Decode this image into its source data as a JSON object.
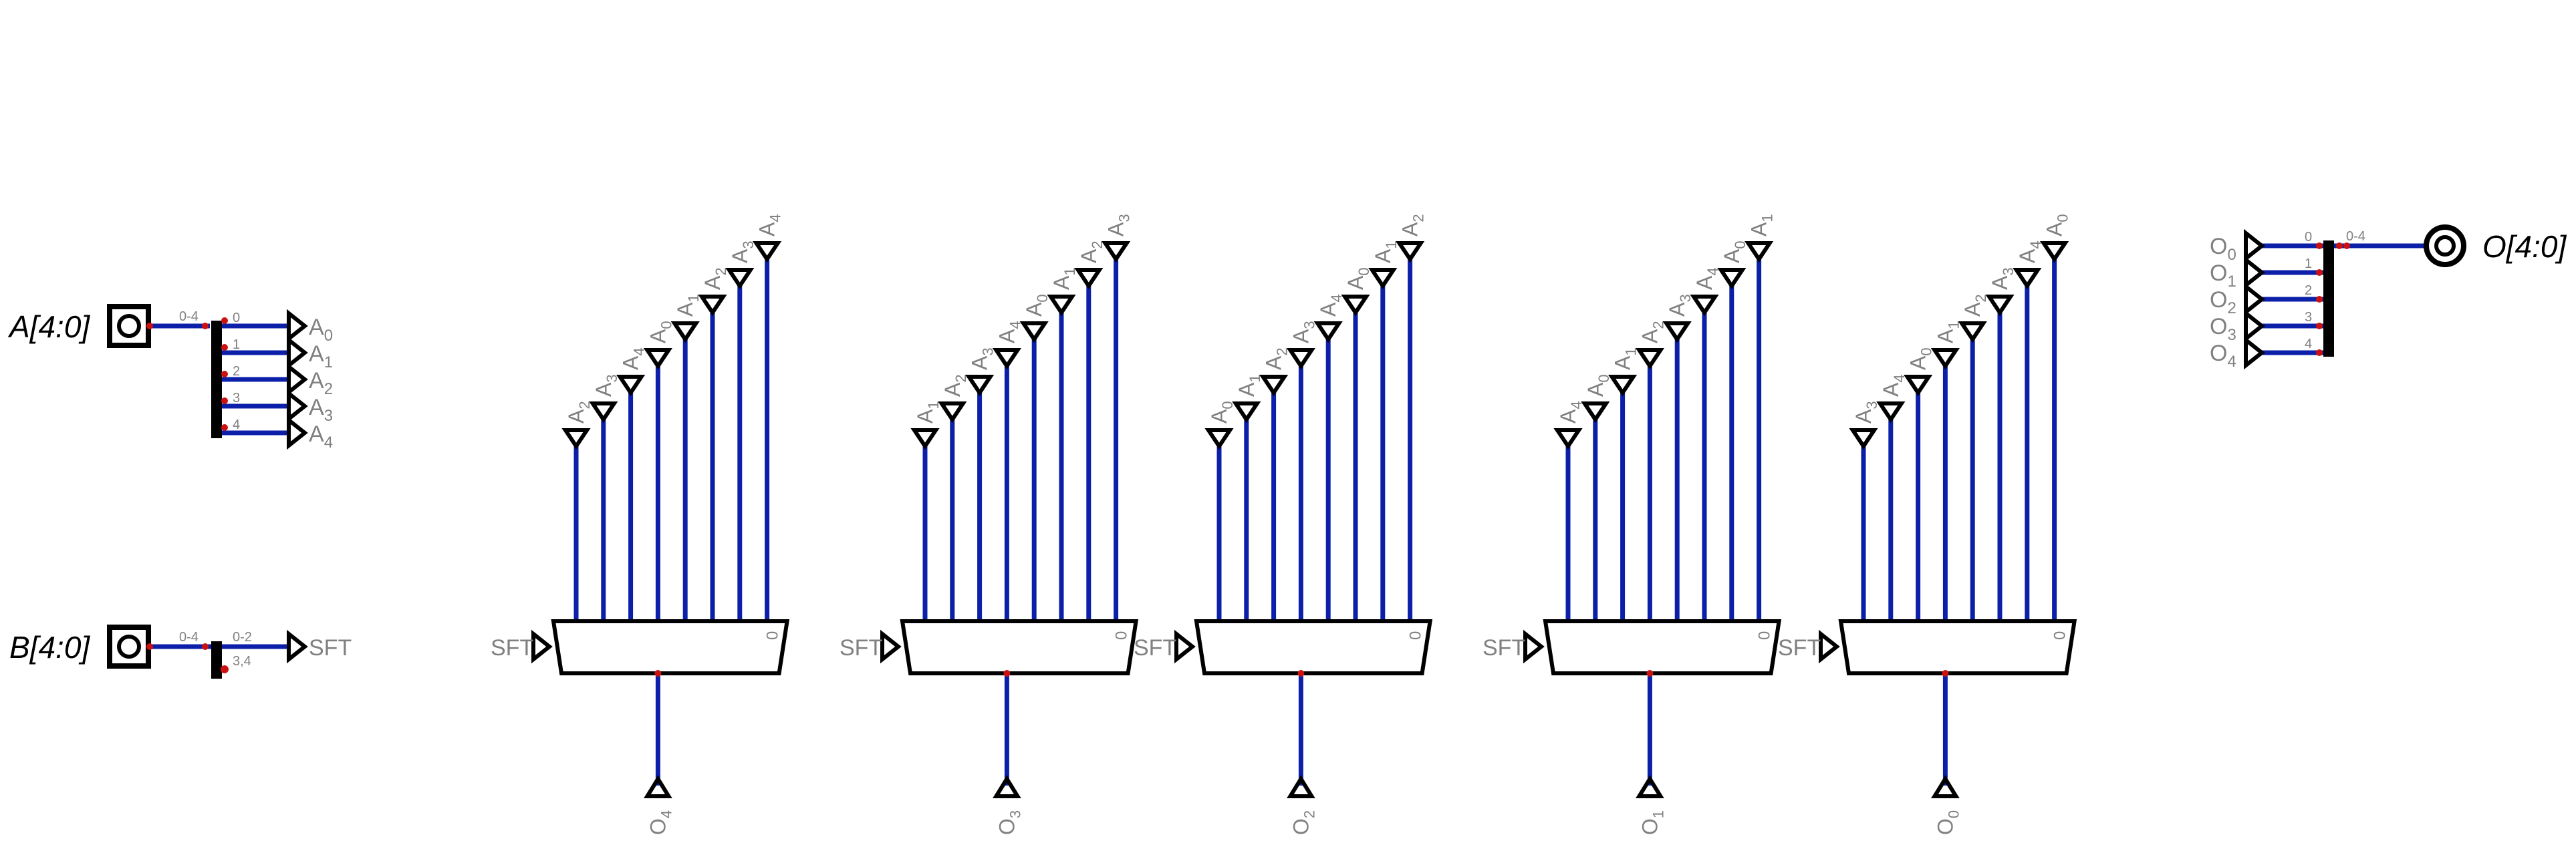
{
  "inputs": {
    "a": {
      "label": "A[4:0]",
      "split_range": "0-4",
      "bits": [
        "0",
        "1",
        "2",
        "3",
        "4"
      ]
    },
    "b": {
      "label": "B[4:0]",
      "split_range": "0-4",
      "bits": [
        "0-2",
        "3,4"
      ],
      "tunnel": "SFT"
    }
  },
  "a_tunnels": [
    {
      "main": "A",
      "sub": "0"
    },
    {
      "main": "A",
      "sub": "1"
    },
    {
      "main": "A",
      "sub": "2"
    },
    {
      "main": "A",
      "sub": "3"
    },
    {
      "main": "A",
      "sub": "4"
    }
  ],
  "output": {
    "label": "O[4:0]",
    "split_range": "0-4",
    "bits": [
      "0",
      "1",
      "2",
      "3",
      "4"
    ],
    "tunnels": [
      {
        "main": "O",
        "sub": "0"
      },
      {
        "main": "O",
        "sub": "1"
      },
      {
        "main": "O",
        "sub": "2"
      },
      {
        "main": "O",
        "sub": "3"
      },
      {
        "main": "O",
        "sub": "4"
      }
    ]
  },
  "muxes": [
    {
      "select": "SFT",
      "zero": "0",
      "inputs": [
        [
          "A",
          "2"
        ],
        [
          "A",
          "3"
        ],
        [
          "A",
          "4"
        ],
        [
          "A",
          "0"
        ],
        [
          "A",
          "1"
        ],
        [
          "A",
          "2"
        ],
        [
          "A",
          "3"
        ],
        [
          "A",
          "4"
        ]
      ],
      "out": [
        "O",
        "4"
      ]
    },
    {
      "select": "SFT",
      "zero": "0",
      "inputs": [
        [
          "A",
          "1"
        ],
        [
          "A",
          "2"
        ],
        [
          "A",
          "3"
        ],
        [
          "A",
          "4"
        ],
        [
          "A",
          "0"
        ],
        [
          "A",
          "1"
        ],
        [
          "A",
          "2"
        ],
        [
          "A",
          "3"
        ]
      ],
      "out": [
        "O",
        "3"
      ]
    },
    {
      "select": "SFT",
      "zero": "0",
      "inputs": [
        [
          "A",
          "0"
        ],
        [
          "A",
          "1"
        ],
        [
          "A",
          "2"
        ],
        [
          "A",
          "3"
        ],
        [
          "A",
          "4"
        ],
        [
          "A",
          "0"
        ],
        [
          "A",
          "1"
        ],
        [
          "A",
          "2"
        ]
      ],
      "out": [
        "O",
        "2"
      ]
    },
    {
      "select": "SFT",
      "zero": "0",
      "inputs": [
        [
          "A",
          "4"
        ],
        [
          "A",
          "0"
        ],
        [
          "A",
          "1"
        ],
        [
          "A",
          "2"
        ],
        [
          "A",
          "3"
        ],
        [
          "A",
          "4"
        ],
        [
          "A",
          "0"
        ],
        [
          "A",
          "1"
        ]
      ],
      "out": [
        "O",
        "1"
      ]
    },
    {
      "select": "SFT",
      "zero": "0",
      "inputs": [
        [
          "A",
          "3"
        ],
        [
          "A",
          "4"
        ],
        [
          "A",
          "0"
        ],
        [
          "A",
          "1"
        ],
        [
          "A",
          "2"
        ],
        [
          "A",
          "3"
        ],
        [
          "A",
          "4"
        ],
        [
          "A",
          "0"
        ]
      ],
      "out": [
        "O",
        "0"
      ]
    }
  ]
}
